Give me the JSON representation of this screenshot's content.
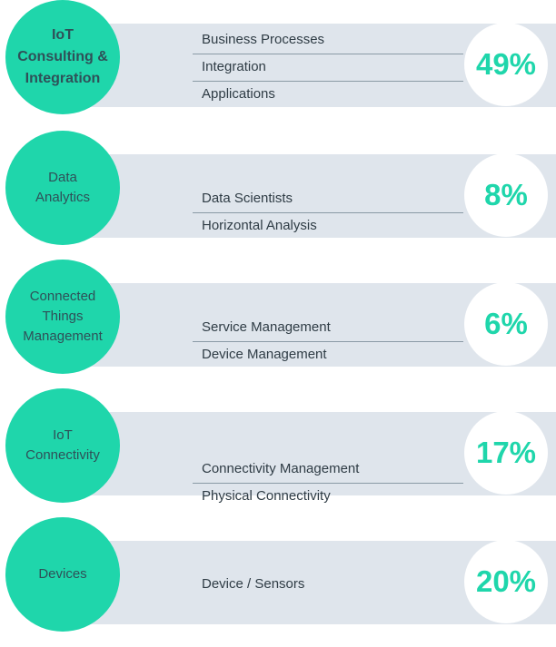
{
  "colors": {
    "accent": "#1fd6ab",
    "band": "#dfe5ec",
    "text": "#2f3c45",
    "circle_text": "#2f5058"
  },
  "chart_data": {
    "type": "bar",
    "categories": [
      "IoT Consulting & Integration",
      "Data Analytics",
      "Connected Things Management",
      "IoT Connectivity",
      "Devices"
    ],
    "values": [
      49,
      8,
      6,
      17,
      20
    ],
    "value_unit": "%",
    "segments": [
      {
        "label": "IoT\nConsulting &\nIntegration",
        "value": "49%",
        "items": [
          "Business Processes",
          "Integration",
          "Applications"
        ]
      },
      {
        "label": "Data\nAnalytics",
        "value": "8%",
        "items": [
          "Data Scientists",
          "Horizontal  Analysis"
        ]
      },
      {
        "label": "Connected\nThings\nManagement",
        "value": "6%",
        "items": [
          "Service Management",
          "Device Management"
        ]
      },
      {
        "label": "IoT\nConnectivity",
        "value": "17%",
        "items": [
          "Connectivity Management",
          "Physical Connectivity"
        ]
      },
      {
        "label": "Devices",
        "value": "20%",
        "items": [
          "Device / Sensors"
        ]
      }
    ]
  }
}
